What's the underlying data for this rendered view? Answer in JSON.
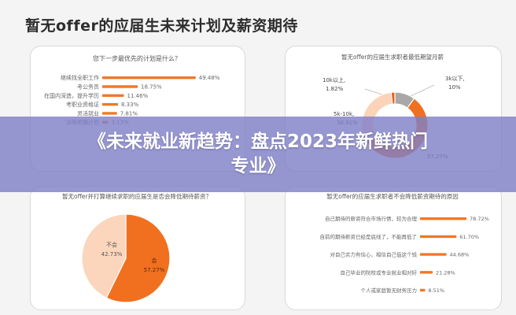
{
  "page": {
    "heading": "暂无offer的应届生未来计划及薪资期待",
    "banner_line1": "《未来就业新趋势：盘点2023年新鲜热门",
    "banner_line2": "专业》"
  },
  "chart_data": [
    {
      "type": "bar",
      "orientation": "horizontal",
      "title": "您下一步最优先的计划是什么？",
      "categories": [
        "继续找全职工作",
        "考公务员",
        "在国内深造，提升学历",
        "考职业资格证",
        "灵活就业",
        "没有明确计划"
      ],
      "values": [
        49.48,
        18.75,
        11.46,
        8.33,
        7.81,
        3.13
      ],
      "value_labels": [
        "49.48%",
        "18.75%",
        "11.46%",
        "8.33%",
        "7.81%",
        "3.13%"
      ],
      "xlim": [
        0,
        60
      ],
      "color": "#f07828"
    },
    {
      "type": "pie",
      "style": "donut",
      "title": "暂无offer的应届生求职者最低期望月薪",
      "slices": [
        {
          "label": "3k以下,",
          "value_label": "10%",
          "value": 10,
          "color": "#a8a8a8"
        },
        {
          "label": "",
          "value_label": "57.27%",
          "value": 57.27,
          "color": "#f07020"
        },
        {
          "label": "5k-10k,",
          "value_label": "30.91%",
          "value": 30.91,
          "color": "#fbd3b8"
        },
        {
          "label": "10k以上,",
          "value_label": "1.82%",
          "value": 1.82,
          "color": "#ea6010"
        }
      ]
    },
    {
      "type": "pie",
      "title": "暂无offer并打算继续求职的应届生是否会降低期待薪资？",
      "slices": [
        {
          "label": "会",
          "value_label": "57.27%",
          "value": 57.27,
          "color": "#f07020"
        },
        {
          "label": "不会",
          "value_label": "42.73%",
          "value": 42.73,
          "color": "#fbd6bc"
        }
      ]
    },
    {
      "type": "bar",
      "orientation": "horizontal",
      "title": "暂无offer的应届生求职者不会降低薪资期待的原因",
      "categories": [
        "自己期待的薪资符合市场行情，较为合理",
        "自前的期待薪资已经是底线了，不能再低了",
        "对自己实力有信心，相信自己值这个钱",
        "自己毕业的院校或专业就业相对好",
        "个人或家庭暂无财务压力"
      ],
      "values": [
        78.72,
        61.7,
        44.68,
        21.28,
        8.51
      ],
      "value_labels": [
        "78.72%",
        "61.70%",
        "44.68%",
        "21.28%",
        "8.51%"
      ],
      "xlim": [
        0,
        100
      ],
      "color": "#f07828"
    }
  ]
}
